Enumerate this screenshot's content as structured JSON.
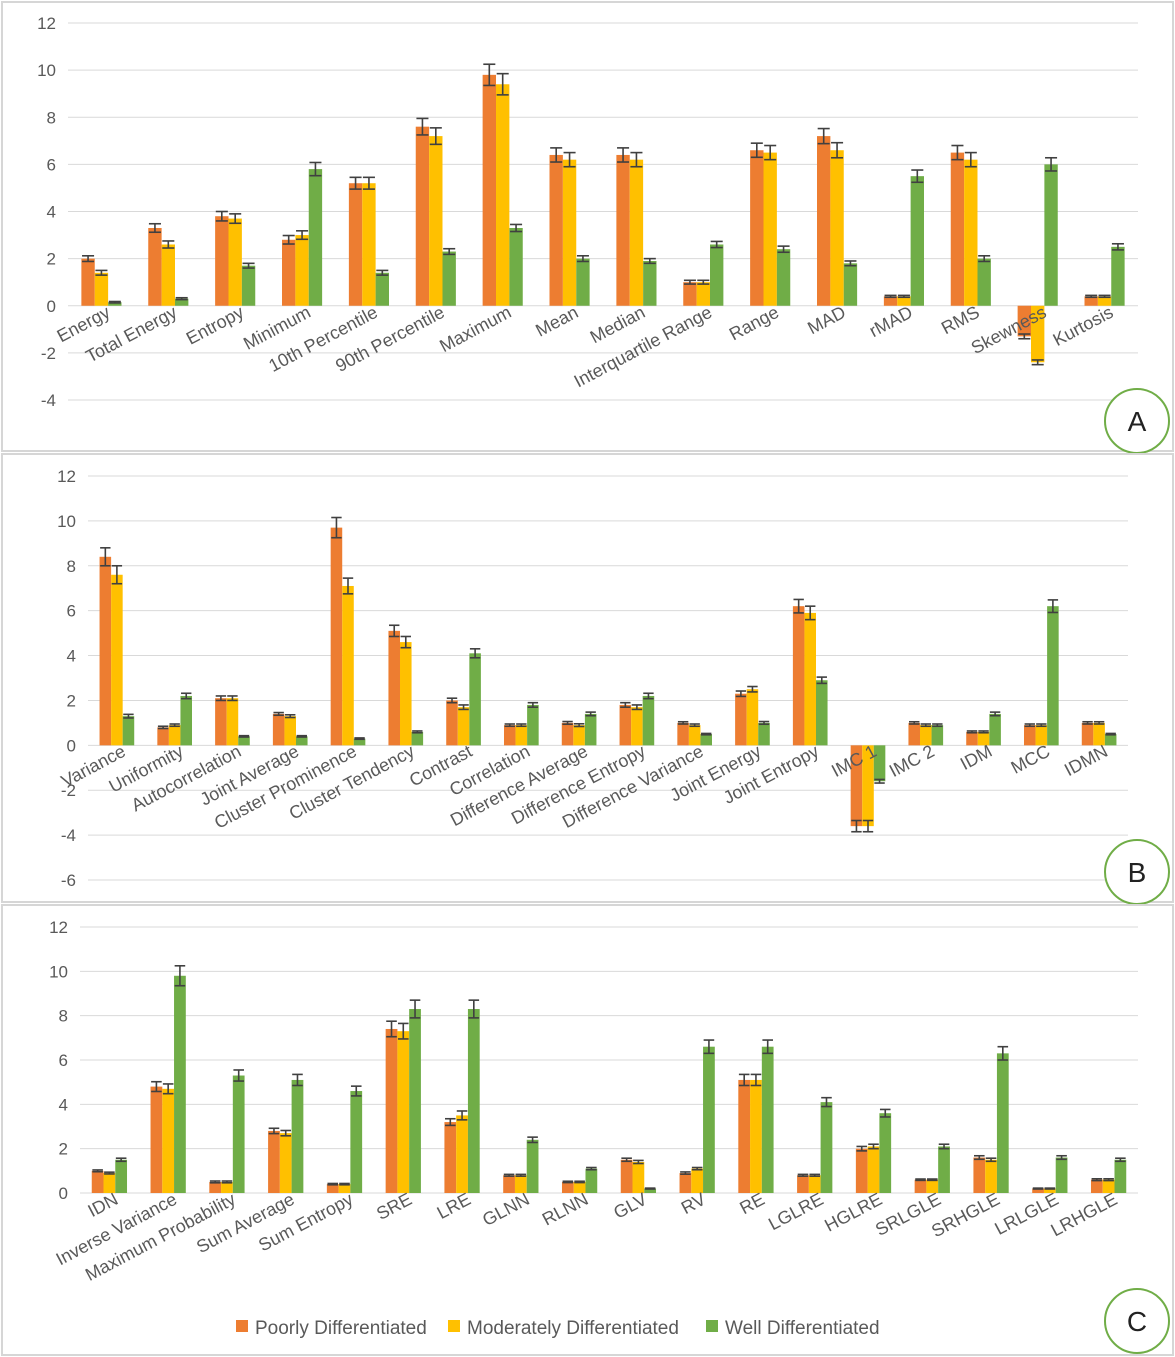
{
  "colors": {
    "poorly": "#ed7d31",
    "moderately": "#ffc000",
    "well": "#70ad47"
  },
  "legend": [
    "Poorly Differentiated",
    "Moderately Differentiated",
    "Well Differentiated"
  ],
  "chart_data": [
    {
      "type": "bar",
      "panel_label": "A",
      "title": "",
      "xlabel": "",
      "ylabel": "",
      "ylim": [
        -4,
        12
      ],
      "yticks": [
        -4,
        -2,
        0,
        2,
        4,
        6,
        8,
        10,
        12
      ],
      "categories": [
        "Energy",
        "Total Energy",
        "Entropy",
        "Minimum",
        "10th Percentile",
        "90th Percentile",
        "Maximum",
        "Mean",
        "Median",
        "Interquartile Range",
        "Range",
        "MAD",
        "rMAD",
        "RMS",
        "Skewness",
        "Kurtosis"
      ],
      "series": [
        {
          "name": "Poorly Differentiated",
          "values": [
            2.0,
            3.3,
            3.8,
            2.8,
            5.2,
            7.6,
            9.8,
            6.4,
            6.4,
            1.0,
            6.6,
            7.2,
            0.4,
            6.5,
            -1.3,
            0.4
          ],
          "errors": [
            0.12,
            0.18,
            0.2,
            0.18,
            0.25,
            0.35,
            0.45,
            0.3,
            0.3,
            0.08,
            0.3,
            0.32,
            0.04,
            0.3,
            0.1,
            0.04
          ]
        },
        {
          "name": "Moderately Differentiated",
          "values": [
            1.4,
            2.6,
            3.7,
            3.0,
            5.2,
            7.2,
            9.4,
            6.2,
            6.2,
            1.0,
            6.5,
            6.6,
            0.4,
            6.2,
            -2.4,
            0.4
          ],
          "errors": [
            0.1,
            0.15,
            0.2,
            0.18,
            0.25,
            0.35,
            0.45,
            0.3,
            0.3,
            0.08,
            0.3,
            0.32,
            0.04,
            0.3,
            0.1,
            0.04
          ]
        },
        {
          "name": "Well Differentiated",
          "values": [
            0.15,
            0.3,
            1.7,
            5.8,
            1.4,
            2.3,
            3.3,
            2.0,
            1.9,
            2.6,
            2.4,
            1.8,
            5.5,
            2.0,
            6.0,
            2.5
          ],
          "errors": [
            0.03,
            0.04,
            0.1,
            0.28,
            0.1,
            0.12,
            0.15,
            0.12,
            0.1,
            0.13,
            0.13,
            0.1,
            0.26,
            0.12,
            0.28,
            0.13
          ]
        }
      ]
    },
    {
      "type": "bar",
      "panel_label": "B",
      "title": "",
      "xlabel": "",
      "ylabel": "",
      "ylim": [
        -6,
        12
      ],
      "yticks": [
        -6,
        -4,
        -2,
        0,
        2,
        4,
        6,
        8,
        10,
        12
      ],
      "categories": [
        "Variance",
        "Uniformity",
        "Autocorrelation",
        "Joint Average",
        "Cluster Prominence",
        "Cluster Tendency",
        "Contrast",
        "Correlation",
        "Difference Average",
        "Difference Entropy",
        "Difference Variance",
        "Joint Energy",
        "Joint Entropy",
        "IMC 1",
        "IMC 2",
        "IDM",
        "MCC",
        "IDMN"
      ],
      "series": [
        {
          "name": "Poorly Differentiated",
          "values": [
            8.4,
            0.8,
            2.1,
            1.4,
            9.7,
            5.1,
            2.0,
            0.9,
            1.0,
            1.8,
            1.0,
            2.3,
            6.2,
            -3.6,
            1.0,
            0.6,
            0.9,
            1.0
          ],
          "errors": [
            0.4,
            0.05,
            0.1,
            0.06,
            0.45,
            0.25,
            0.1,
            0.05,
            0.06,
            0.1,
            0.05,
            0.12,
            0.3,
            0.25,
            0.05,
            0.04,
            0.05,
            0.05
          ]
        },
        {
          "name": "Moderately Differentiated",
          "values": [
            7.6,
            0.9,
            2.1,
            1.3,
            7.1,
            4.6,
            1.7,
            0.9,
            0.9,
            1.7,
            0.9,
            2.5,
            5.9,
            -3.6,
            0.9,
            0.6,
            0.9,
            1.0
          ],
          "errors": [
            0.4,
            0.05,
            0.1,
            0.06,
            0.35,
            0.25,
            0.1,
            0.05,
            0.06,
            0.1,
            0.05,
            0.12,
            0.3,
            0.25,
            0.05,
            0.04,
            0.05,
            0.05
          ]
        },
        {
          "name": "Well Differentiated",
          "values": [
            1.3,
            2.2,
            0.4,
            0.4,
            0.3,
            0.6,
            4.1,
            1.8,
            1.4,
            2.2,
            0.5,
            1.0,
            2.9,
            -1.6,
            0.9,
            1.4,
            6.2,
            0.5
          ],
          "errors": [
            0.08,
            0.12,
            0.03,
            0.03,
            0.03,
            0.04,
            0.2,
            0.1,
            0.08,
            0.12,
            0.03,
            0.06,
            0.14,
            0.08,
            0.05,
            0.08,
            0.28,
            0.03
          ]
        }
      ]
    },
    {
      "type": "bar",
      "panel_label": "C",
      "title": "",
      "xlabel": "",
      "ylabel": "",
      "ylim": [
        0,
        12
      ],
      "yticks": [
        0,
        2,
        4,
        6,
        8,
        10,
        12
      ],
      "categories": [
        "IDN",
        "Inverse Variance",
        "Maximum Probability",
        "Sum Average",
        "Sum Entropy",
        "SRE",
        "LRE",
        "GLNN",
        "RLNN",
        "GLV",
        "RV",
        "RE",
        "LGLRE",
        "HGLRE",
        "SRLGLE",
        "SRHGLE",
        "LRLGLE",
        "LRHGLE"
      ],
      "series": [
        {
          "name": "Poorly Differentiated",
          "values": [
            1.0,
            4.8,
            0.5,
            2.8,
            0.4,
            7.4,
            3.2,
            0.8,
            0.5,
            1.5,
            0.9,
            5.1,
            0.8,
            2.0,
            0.6,
            1.6,
            0.2,
            0.6
          ],
          "errors": [
            0.04,
            0.22,
            0.04,
            0.12,
            0.03,
            0.35,
            0.15,
            0.04,
            0.03,
            0.07,
            0.05,
            0.25,
            0.04,
            0.1,
            0.03,
            0.08,
            0.02,
            0.04
          ]
        },
        {
          "name": "Moderately Differentiated",
          "values": [
            0.9,
            4.7,
            0.5,
            2.7,
            0.4,
            7.3,
            3.5,
            0.8,
            0.5,
            1.4,
            1.1,
            5.1,
            0.8,
            2.1,
            0.6,
            1.5,
            0.2,
            0.6
          ],
          "errors": [
            0.04,
            0.22,
            0.04,
            0.12,
            0.03,
            0.35,
            0.2,
            0.04,
            0.03,
            0.07,
            0.05,
            0.25,
            0.04,
            0.1,
            0.03,
            0.07,
            0.02,
            0.04
          ]
        },
        {
          "name": "Well Differentiated",
          "values": [
            1.5,
            9.8,
            5.3,
            5.1,
            4.6,
            8.3,
            8.3,
            2.4,
            1.1,
            0.2,
            6.6,
            6.6,
            4.1,
            3.6,
            2.1,
            6.3,
            1.6,
            1.5
          ],
          "errors": [
            0.07,
            0.45,
            0.25,
            0.25,
            0.22,
            0.4,
            0.4,
            0.12,
            0.05,
            0.02,
            0.3,
            0.3,
            0.2,
            0.17,
            0.1,
            0.3,
            0.08,
            0.07
          ]
        }
      ]
    }
  ]
}
